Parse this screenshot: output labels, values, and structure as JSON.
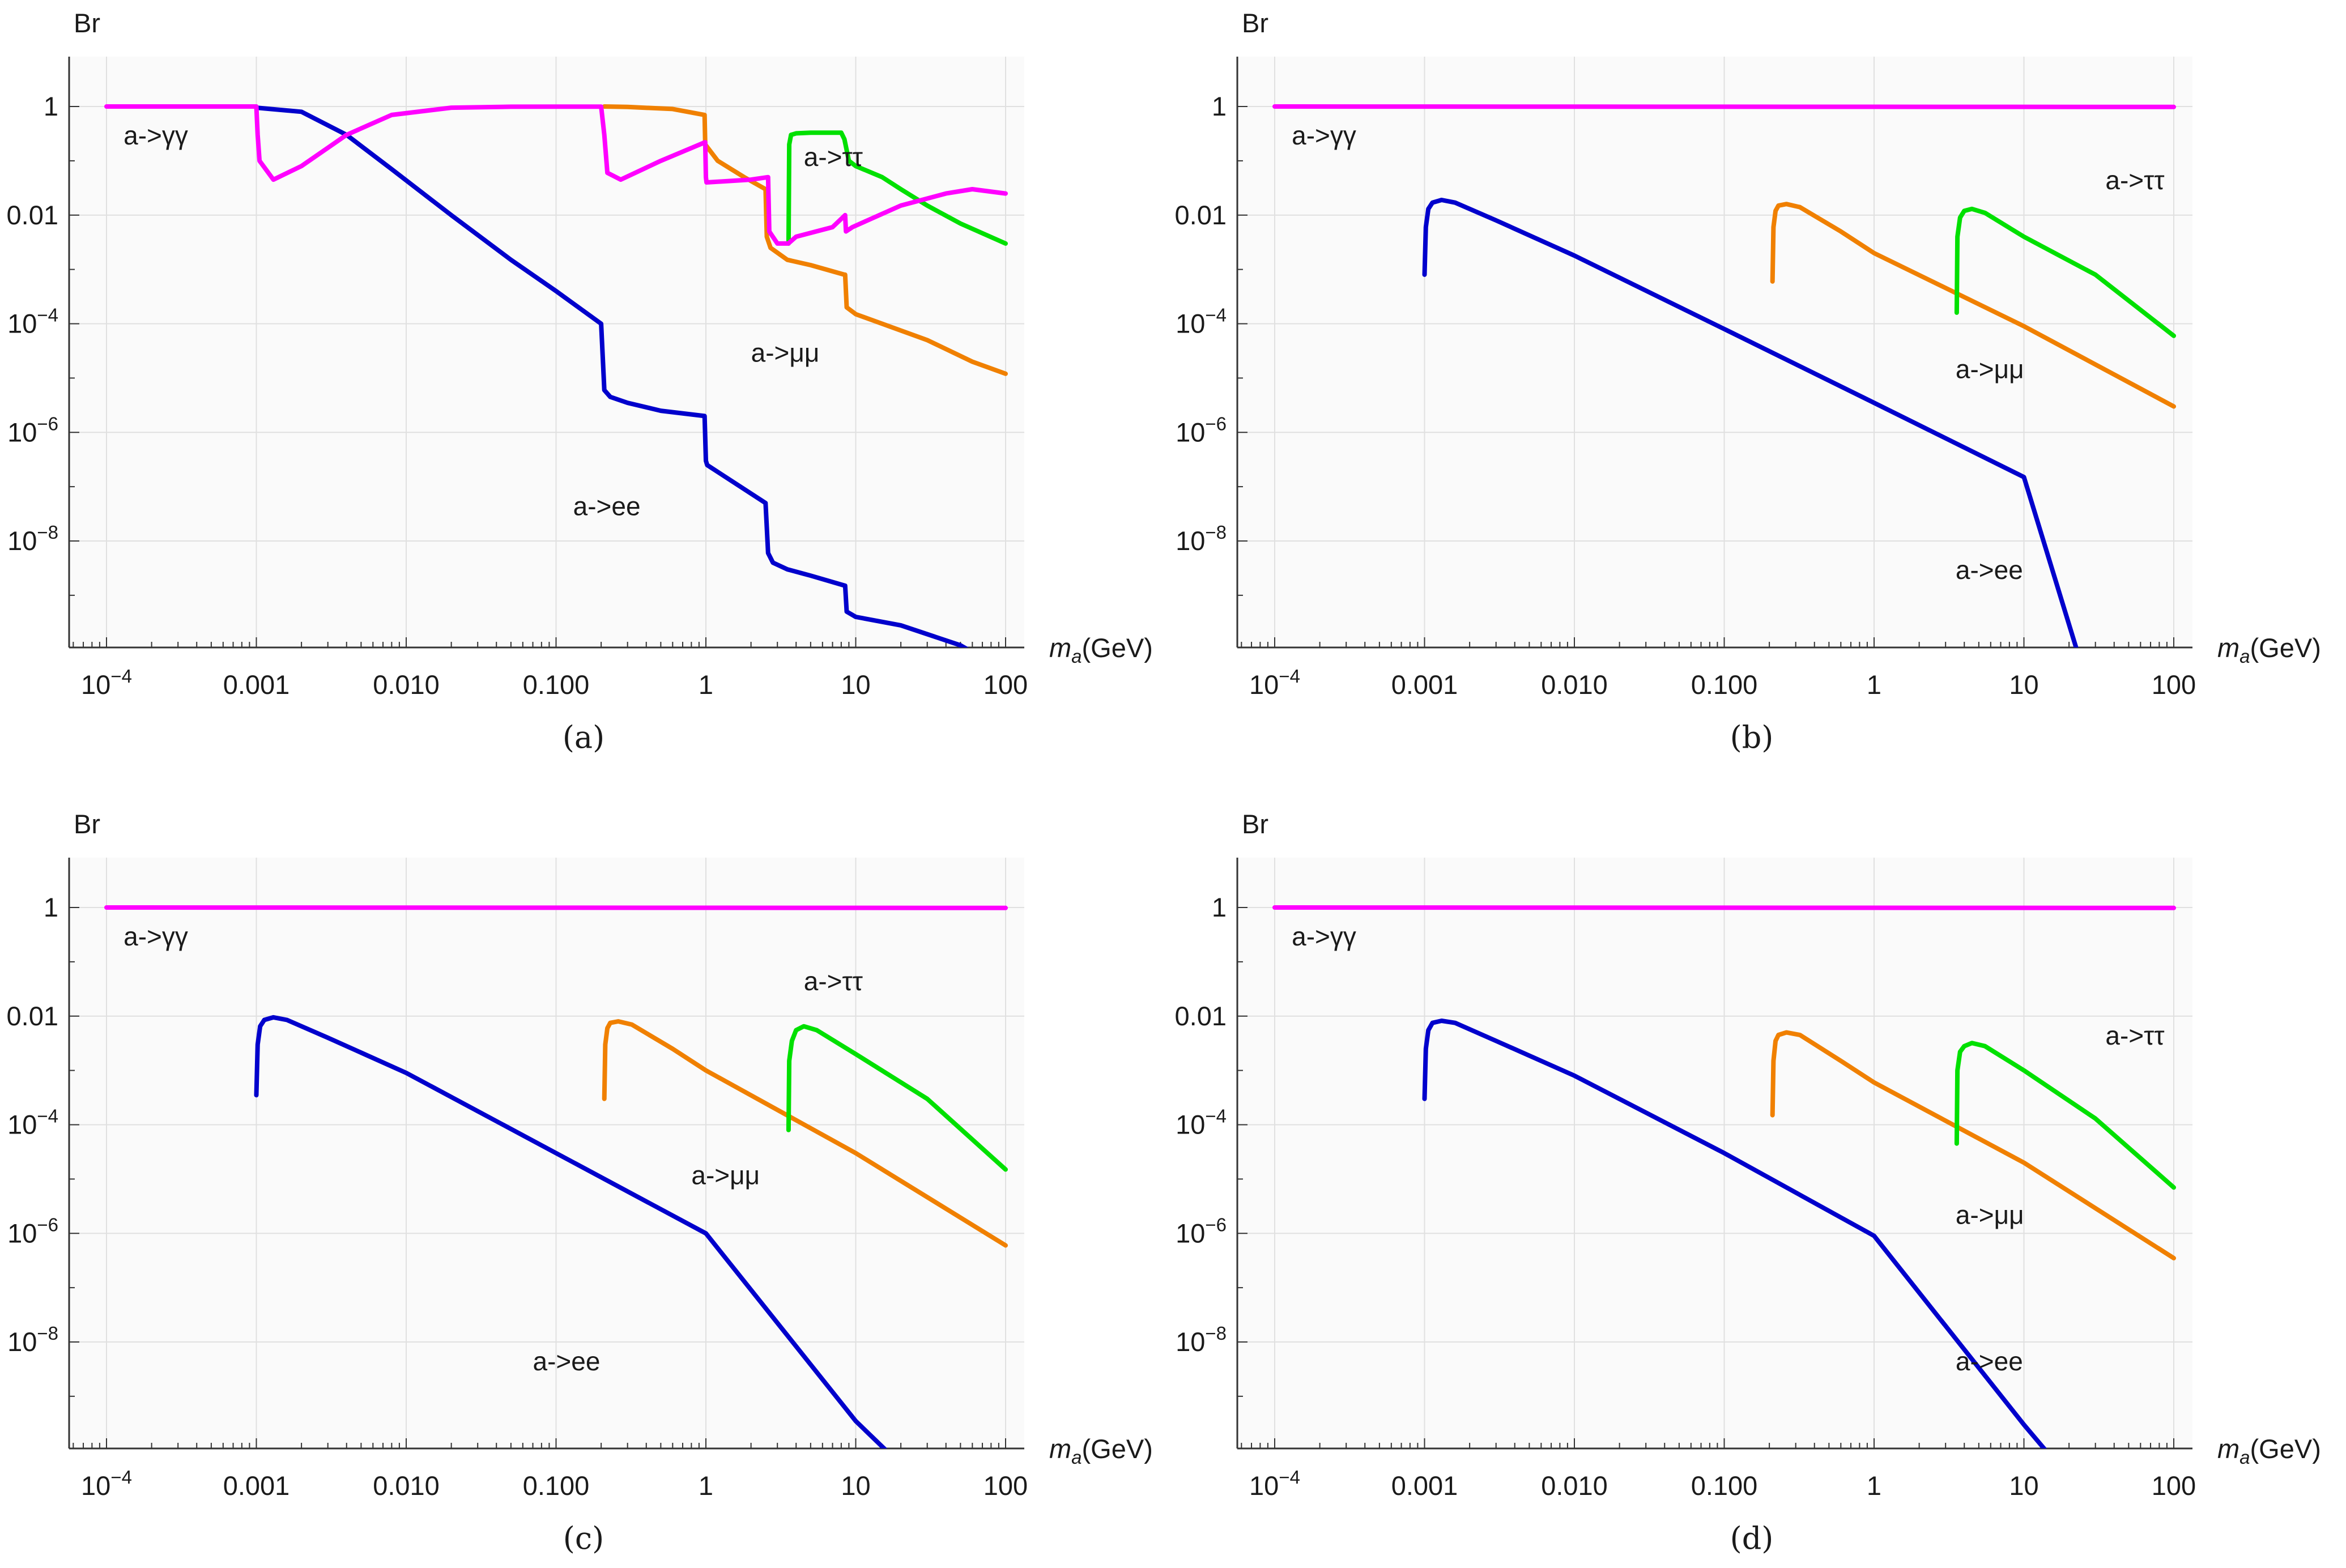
{
  "figure": {
    "xlabel_main": "m",
    "xlabel_sub": "a",
    "xlabel_unit": "(GeV)",
    "ylabel": "Br"
  },
  "chart_data": [
    {
      "caption": "(a)",
      "type": "line",
      "xscale": "log",
      "yscale": "log",
      "xlabel": "ma(GeV)",
      "ylabel": "Br",
      "xlim": [
        0.0001,
        100
      ],
      "ylim": [
        1e-10,
        10
      ],
      "grid": true,
      "xticks": [
        "10^-4",
        "0.001",
        "0.010",
        "0.100",
        "1",
        "10",
        "100"
      ],
      "yticks": [
        "10^-8",
        "10^-6",
        "10^-4",
        "0.01",
        "1"
      ],
      "series": [
        {
          "name": "a->γγ",
          "color": "#ff00ff",
          "label_at": [
            0.00013,
            0.2
          ],
          "x": [
            0.0001,
            0.001,
            0.00102,
            0.00105,
            0.0013,
            0.002,
            0.004,
            0.008,
            0.02,
            0.05,
            0.1,
            0.2,
            0.21,
            0.22,
            0.27,
            0.5,
            0.99,
            1.0,
            1.01,
            2,
            2.6,
            2.65,
            3,
            3.55,
            4,
            7,
            8.5,
            8.6,
            9.5,
            12,
            20,
            40,
            60,
            100
          ],
          "y": [
            1,
            1,
            0.3,
            0.1,
            0.045,
            0.08,
            0.3,
            0.7,
            0.95,
            0.99,
            0.995,
            0.995,
            0.3,
            0.06,
            0.045,
            0.1,
            0.22,
            0.05,
            0.04,
            0.045,
            0.05,
            0.005,
            0.003,
            0.003,
            0.004,
            0.006,
            0.01,
            0.005,
            0.006,
            0.008,
            0.015,
            0.025,
            0.03,
            0.025
          ]
        },
        {
          "name": "a->ee",
          "color": "#0000cc",
          "label_at": [
            0.13,
            3e-08
          ],
          "x": [
            0.001,
            0.002,
            0.004,
            0.008,
            0.02,
            0.05,
            0.1,
            0.2,
            0.21,
            0.23,
            0.3,
            0.5,
            0.98,
            1.0,
            1.02,
            2.5,
            2.6,
            2.8,
            3.5,
            5,
            8.5,
            8.7,
            10,
            20,
            50,
            100
          ],
          "y": [
            0.95,
            0.8,
            0.3,
            0.07,
            0.01,
            0.0015,
            0.0004,
            0.0001,
            6e-06,
            4.5e-06,
            3.5e-06,
            2.5e-06,
            2e-06,
            3e-07,
            2.5e-07,
            5e-08,
            6e-09,
            4e-09,
            3e-09,
            2.3e-09,
            1.5e-09,
            5e-10,
            4e-10,
            2.8e-10,
            1.2e-10,
            4e-11
          ]
        },
        {
          "name": "a->μμ",
          "color": "#f08000",
          "label_at": [
            2.0,
            2e-05
          ],
          "x": [
            0.21,
            0.3,
            0.6,
            0.98,
            0.99,
            1.2,
            1.8,
            2.5,
            2.55,
            2.7,
            3.5,
            5,
            8.4,
            8.5,
            8.7,
            10,
            15,
            30,
            60,
            100
          ],
          "y": [
            1,
            0.98,
            0.9,
            0.7,
            0.2,
            0.1,
            0.05,
            0.03,
            0.004,
            0.0025,
            0.0015,
            0.0012,
            0.0008,
            0.0008,
            0.0002,
            0.00015,
            0.0001,
            5e-05,
            2e-05,
            1.2e-05
          ]
        },
        {
          "name": "a->ττ",
          "color": "#00e000",
          "label_at": [
            4.5,
            0.08
          ],
          "x": [
            3.56,
            3.6,
            3.7,
            4,
            5,
            7,
            8,
            8.4,
            9,
            10,
            15,
            20,
            30,
            50,
            100
          ],
          "y": [
            0.003,
            0.2,
            0.3,
            0.32,
            0.33,
            0.33,
            0.33,
            0.25,
            0.1,
            0.08,
            0.05,
            0.03,
            0.015,
            0.007,
            0.003
          ]
        }
      ]
    },
    {
      "caption": "(b)",
      "type": "line",
      "xscale": "log",
      "yscale": "log",
      "xlabel": "ma(GeV)",
      "ylabel": "Br",
      "xlim": [
        0.0001,
        100
      ],
      "ylim": [
        1e-10,
        10
      ],
      "grid": true,
      "xticks": [
        "10^-4",
        "0.001",
        "0.010",
        "0.100",
        "1",
        "10",
        "100"
      ],
      "yticks": [
        "10^-8",
        "10^-6",
        "10^-4",
        "0.01",
        "1"
      ],
      "series": [
        {
          "name": "a->γγ",
          "color": "#ff00ff",
          "label_at": [
            0.00013,
            0.2
          ],
          "x": [
            0.0001,
            100
          ],
          "y": [
            1,
            0.98
          ]
        },
        {
          "name": "a->ee",
          "color": "#0000cc",
          "label_at": [
            3.5,
            2e-09
          ],
          "x": [
            0.001,
            0.00102,
            0.00106,
            0.00113,
            0.0013,
            0.0016,
            0.003,
            0.01,
            0.1,
            1,
            10,
            22.5
          ],
          "y": [
            0.0008,
            0.006,
            0.013,
            0.017,
            0.019,
            0.017,
            0.008,
            0.0018,
            8e-05,
            3.5e-06,
            1.5e-07,
            1e-10
          ]
        },
        {
          "name": "a->μμ",
          "color": "#f08000",
          "label_at": [
            3.5,
            1e-05
          ],
          "x": [
            0.21,
            0.213,
            0.22,
            0.23,
            0.26,
            0.32,
            0.6,
            1,
            10,
            100
          ],
          "y": [
            0.0006,
            0.006,
            0.012,
            0.015,
            0.016,
            0.014,
            0.005,
            0.002,
            9e-05,
            3e-06
          ]
        },
        {
          "name": "a->ττ",
          "color": "#00e000",
          "label_at": [
            35,
            0.03
          ],
          "x": [
            3.56,
            3.6,
            3.75,
            4,
            4.5,
            5.5,
            10,
            30,
            100
          ],
          "y": [
            0.00016,
            0.004,
            0.009,
            0.012,
            0.013,
            0.011,
            0.004,
            0.0008,
            6e-05
          ]
        }
      ]
    },
    {
      "caption": "(c)",
      "type": "line",
      "xscale": "log",
      "yscale": "log",
      "xlabel": "ma(GeV)",
      "ylabel": "Br",
      "xlim": [
        0.0001,
        100
      ],
      "ylim": [
        1e-10,
        10
      ],
      "grid": true,
      "xticks": [
        "10^-4",
        "0.001",
        "0.010",
        "0.100",
        "1",
        "10",
        "100"
      ],
      "yticks": [
        "10^-8",
        "10^-6",
        "10^-4",
        "0.01",
        "1"
      ],
      "series": [
        {
          "name": "a->γγ",
          "color": "#ff00ff",
          "label_at": [
            0.00013,
            0.2
          ],
          "x": [
            0.0001,
            100
          ],
          "y": [
            1,
            0.98
          ]
        },
        {
          "name": "a->ee",
          "color": "#0000cc",
          "label_at": [
            0.07,
            3e-09
          ],
          "x": [
            0.001,
            0.00102,
            0.00106,
            0.00113,
            0.0013,
            0.0016,
            0.003,
            0.01,
            0.1,
            1,
            10,
            16
          ],
          "y": [
            0.00035,
            0.003,
            0.0065,
            0.0085,
            0.0095,
            0.0085,
            0.004,
            0.0009,
            3e-05,
            1e-06,
            3.5e-10,
            1e-10
          ]
        },
        {
          "name": "a->μμ",
          "color": "#f08000",
          "label_at": [
            0.8,
            8e-06
          ],
          "x": [
            0.21,
            0.213,
            0.22,
            0.23,
            0.26,
            0.32,
            0.6,
            1,
            10,
            100
          ],
          "y": [
            0.0003,
            0.003,
            0.006,
            0.0075,
            0.008,
            0.007,
            0.0025,
            0.001,
            3e-05,
            6e-07
          ]
        },
        {
          "name": "a->ττ",
          "color": "#00e000",
          "label_at": [
            4.5,
            0.03
          ],
          "x": [
            3.56,
            3.6,
            3.75,
            4,
            4.5,
            5.5,
            10,
            30,
            100
          ],
          "y": [
            8e-05,
            0.0015,
            0.0035,
            0.0055,
            0.0065,
            0.0055,
            0.002,
            0.0003,
            1.5e-05
          ]
        }
      ]
    },
    {
      "caption": "(d)",
      "type": "line",
      "xscale": "log",
      "yscale": "log",
      "xlabel": "ma(GeV)",
      "ylabel": "Br",
      "xlim": [
        0.0001,
        100
      ],
      "ylim": [
        1e-10,
        10
      ],
      "grid": true,
      "xticks": [
        "10^-4",
        "0.001",
        "0.010",
        "0.100",
        "1",
        "10",
        "100"
      ],
      "yticks": [
        "10^-8",
        "10^-6",
        "10^-4",
        "0.01",
        "1"
      ],
      "series": [
        {
          "name": "a->γγ",
          "color": "#ff00ff",
          "label_at": [
            0.00013,
            0.2
          ],
          "x": [
            0.0001,
            100
          ],
          "y": [
            1,
            0.98
          ]
        },
        {
          "name": "a->ee",
          "color": "#0000cc",
          "label_at": [
            3.5,
            3e-09
          ],
          "x": [
            0.001,
            0.00102,
            0.00106,
            0.00113,
            0.0013,
            0.0016,
            0.003,
            0.01,
            0.1,
            1,
            10,
            14
          ],
          "y": [
            0.0003,
            0.0025,
            0.0055,
            0.0075,
            0.0082,
            0.0075,
            0.0035,
            0.0008,
            3e-05,
            9e-07,
            3e-10,
            1e-10
          ]
        },
        {
          "name": "a->μμ",
          "color": "#f08000",
          "label_at": [
            3.5,
            1.5e-06
          ],
          "x": [
            0.21,
            0.213,
            0.22,
            0.23,
            0.26,
            0.32,
            0.6,
            1,
            10,
            100
          ],
          "y": [
            0.00015,
            0.0015,
            0.0035,
            0.0045,
            0.005,
            0.0045,
            0.0015,
            0.0006,
            2e-05,
            3.5e-07
          ]
        },
        {
          "name": "a->ττ",
          "color": "#00e000",
          "label_at": [
            35,
            0.003
          ],
          "x": [
            3.56,
            3.6,
            3.75,
            4,
            4.5,
            5.5,
            10,
            30,
            100
          ],
          "y": [
            4.5e-05,
            0.001,
            0.0022,
            0.0028,
            0.0032,
            0.0028,
            0.001,
            0.00013,
            7e-06
          ]
        }
      ]
    }
  ]
}
